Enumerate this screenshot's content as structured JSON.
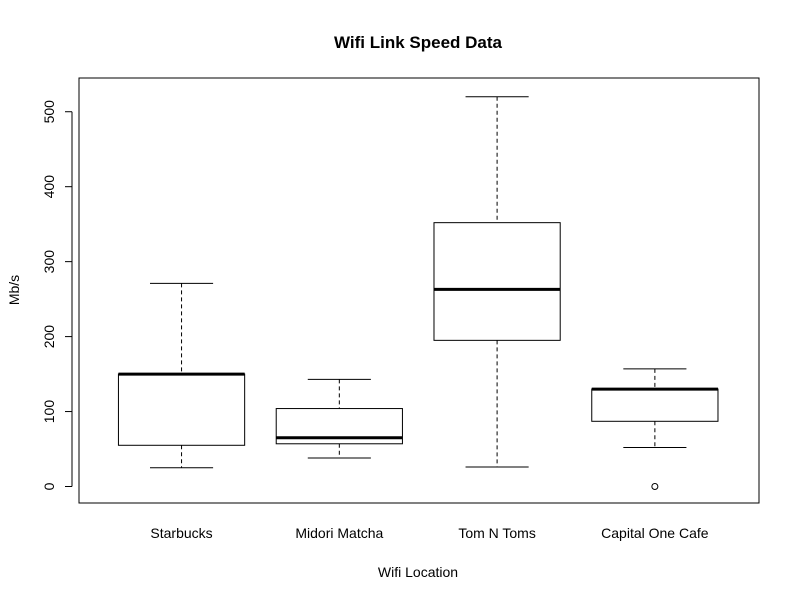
{
  "chart_data": {
    "type": "boxplot",
    "title": "Wifi Link Speed Data",
    "xlabel": "Wifi Location",
    "ylabel": "Mb/s",
    "ylim": [
      -22,
      545
    ],
    "yticks": [
      0,
      100,
      200,
      300,
      400,
      500
    ],
    "categories": [
      "Starbucks",
      "Midori Matcha",
      "Tom N Toms",
      "Capital One Cafe"
    ],
    "boxes": [
      {
        "category": "Starbucks",
        "min": 25,
        "q1": 55,
        "median": 150,
        "q3": 150,
        "max": 271,
        "outliers": []
      },
      {
        "category": "Midori Matcha",
        "min": 38,
        "q1": 57,
        "median": 65,
        "q3": 104,
        "max": 143,
        "outliers": []
      },
      {
        "category": "Tom N Toms",
        "min": 26,
        "q1": 195,
        "median": 263,
        "q3": 352,
        "max": 520,
        "outliers": []
      },
      {
        "category": "Capital One Cafe",
        "min": 52,
        "q1": 87,
        "median": 130,
        "q3": 130,
        "max": 157,
        "outliers": [
          0
        ]
      }
    ],
    "grid": false,
    "legend": "none",
    "colors": {
      "stroke": "#000000",
      "background": "#ffffff"
    }
  }
}
